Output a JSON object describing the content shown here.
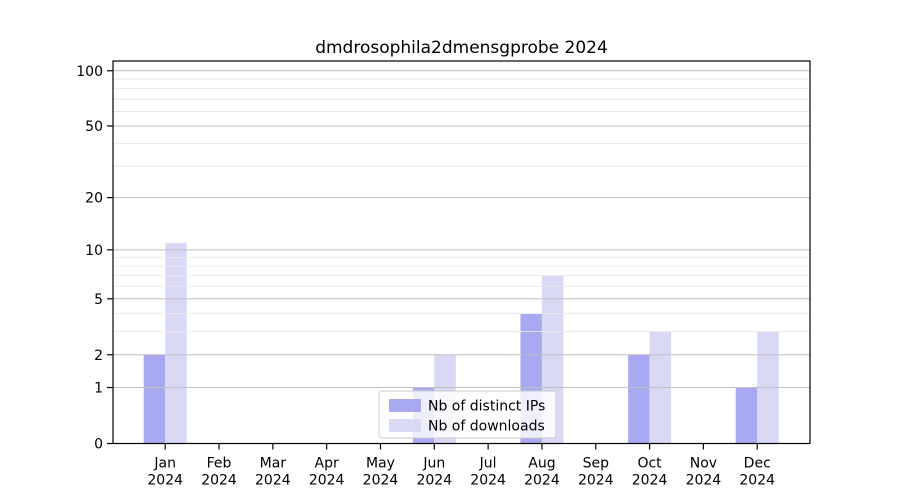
{
  "chart_data": {
    "type": "bar",
    "title": "dmdrosophila2dmensgprobe 2024",
    "categories": [
      "Jan",
      "Feb",
      "Mar",
      "Apr",
      "May",
      "Jun",
      "Jul",
      "Aug",
      "Sep",
      "Oct",
      "Nov",
      "Dec"
    ],
    "category_year": "2024",
    "series": [
      {
        "name": "Nb of distinct IPs",
        "color": "#a9a9f1",
        "values": [
          2,
          0,
          0,
          0,
          0,
          1,
          0,
          4,
          0,
          2,
          0,
          1
        ]
      },
      {
        "name": "Nb of downloads",
        "color": "#d9d9f6",
        "values": [
          11,
          0,
          0,
          0,
          0,
          2,
          0,
          7,
          0,
          3,
          0,
          3
        ]
      }
    ],
    "yscale": "log1p",
    "ylim": [
      0,
      113
    ],
    "yticks": [
      0,
      1,
      2,
      5,
      10,
      20,
      50,
      100
    ],
    "yticks_minor": [
      3,
      4,
      6,
      7,
      8,
      9,
      30,
      40,
      60,
      70,
      80,
      90
    ],
    "grid": "both-on-top",
    "legend": {
      "position": "lower-center-inside",
      "labels": [
        "Nb of distinct IPs",
        "Nb of downloads"
      ]
    },
    "colors": {
      "grid_major": "#c0c0c0",
      "grid_minor": "#e8e8e8",
      "spine": "#000000",
      "legend_border": "#cccccc",
      "background": "#ffffff"
    }
  }
}
